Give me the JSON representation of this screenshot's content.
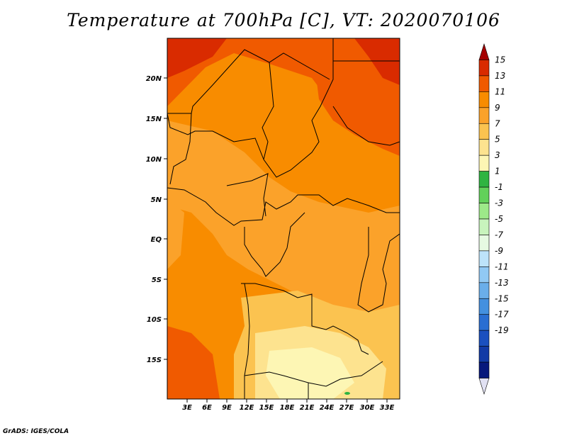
{
  "title": "Temperature at 700hPa [C], VT: 2020070106",
  "credit": "GrADS: IGES/COLA",
  "map": {
    "region": "Central Africa",
    "lat_labels": [
      "20N",
      "15N",
      "10N",
      "5N",
      "EQ",
      "5S",
      "10S",
      "15S"
    ],
    "lon_labels": [
      "3E",
      "6E",
      "9E",
      "12E",
      "15E",
      "18E",
      "21E",
      "24E",
      "27E",
      "30E",
      "33E"
    ]
  },
  "colorbar": {
    "levels": [
      "15",
      "13",
      "11",
      "9",
      "7",
      "5",
      "3",
      "1",
      "-1",
      "-3",
      "-5",
      "-7",
      "-9",
      "-11",
      "-13",
      "-15",
      "-17",
      "-19"
    ],
    "colors": [
      "#a50000",
      "#d92b00",
      "#f05a00",
      "#f88c00",
      "#fba22a",
      "#fbc350",
      "#fde38f",
      "#fdf6b4",
      "#2fb441",
      "#62d15a",
      "#9de989",
      "#c8f4bd",
      "#e6fae2",
      "#bde3fa",
      "#91c9f4",
      "#6aaeea",
      "#4490df",
      "#2a6ed2",
      "#1b50bf",
      "#123aa6",
      "#07187c",
      "#e1e1f3"
    ]
  }
}
